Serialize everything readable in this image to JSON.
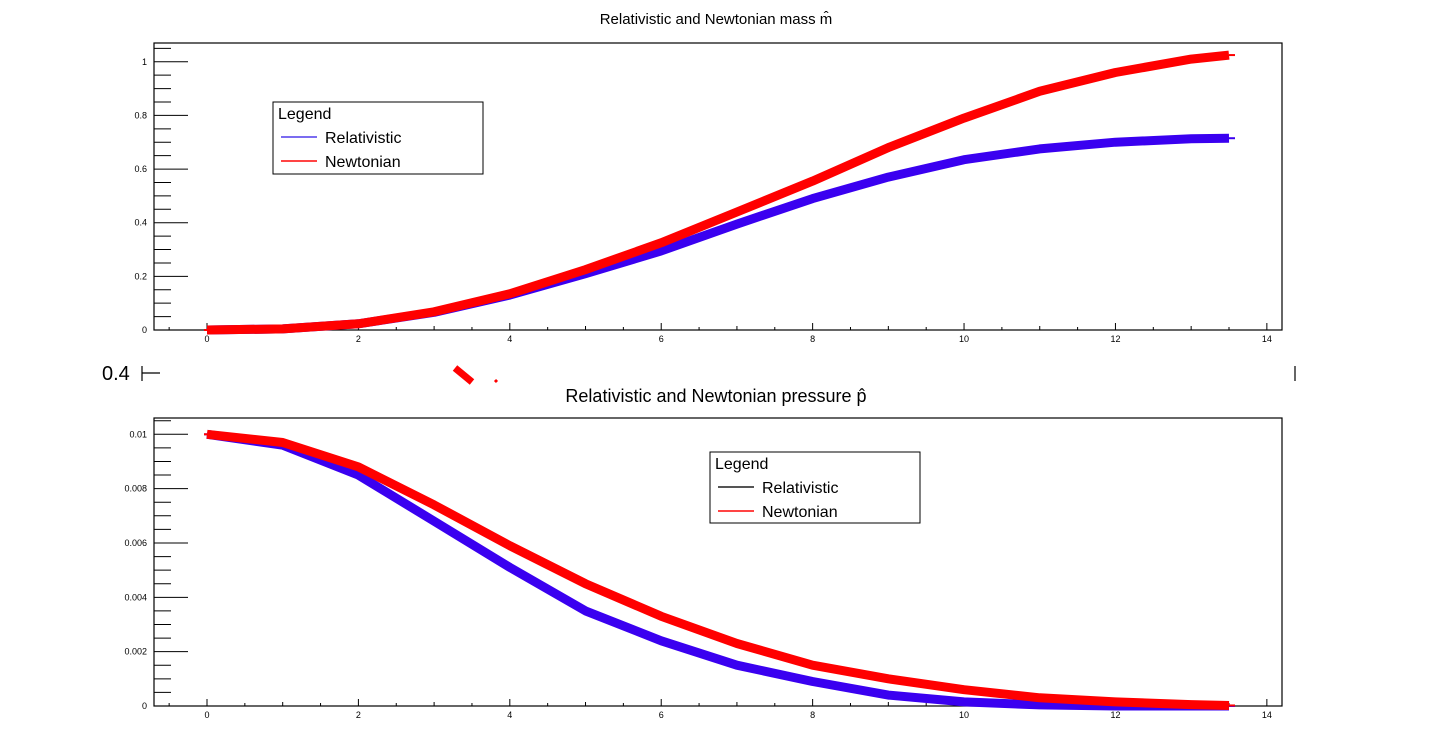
{
  "colors": {
    "relativistic": "#3a00f0",
    "newtonian": "#ff0000",
    "axis": "#000000",
    "legend_rel_top": "#7b6cf0",
    "legend_rel_bottom": "#555555",
    "legend_newt": "#ff4444"
  },
  "artifact": {
    "label": "0.4"
  },
  "chart_data": [
    {
      "type": "line",
      "title": "Relativistic and Newtonian mass m̂",
      "xlabel": "",
      "ylabel": "",
      "xlim": [
        -0.7,
        14.2
      ],
      "ylim": [
        0,
        1.07
      ],
      "xticks": [
        0,
        2,
        4,
        6,
        8,
        10,
        12,
        14
      ],
      "xtick_labels": [
        "0",
        "2",
        "4",
        "6",
        "8",
        "10",
        "12",
        "14"
      ],
      "yticks": [
        0,
        0.2,
        0.4,
        0.6,
        0.8,
        1
      ],
      "ytick_labels": [
        "0",
        "0.2",
        "0.4",
        "0.6",
        "0.8",
        "1"
      ],
      "grid": false,
      "legend": {
        "title": "Legend",
        "placement": "top-left",
        "entries": [
          "Relativistic",
          "Newtonian"
        ]
      },
      "series": [
        {
          "name": "Relativistic",
          "x": [
            0,
            1,
            2,
            3,
            4,
            5,
            6,
            7,
            8,
            9,
            10,
            11,
            12,
            13,
            13.5
          ],
          "y": [
            0,
            0.004,
            0.023,
            0.066,
            0.13,
            0.21,
            0.295,
            0.395,
            0.49,
            0.57,
            0.635,
            0.675,
            0.7,
            0.713,
            0.715
          ]
        },
        {
          "name": "Newtonian",
          "x": [
            0,
            1,
            2,
            3,
            4,
            5,
            6,
            7,
            8,
            9,
            10,
            11,
            12,
            13,
            13.5
          ],
          "y": [
            0,
            0.004,
            0.023,
            0.068,
            0.135,
            0.225,
            0.325,
            0.44,
            0.555,
            0.68,
            0.79,
            0.89,
            0.96,
            1.01,
            1.025
          ]
        }
      ]
    },
    {
      "type": "line",
      "title": "Relativistic and Newtonian pressure p̂",
      "xlabel": "",
      "ylabel": "",
      "xlim": [
        -0.7,
        14.2
      ],
      "ylim": [
        0,
        0.0106
      ],
      "xticks": [
        0,
        2,
        4,
        6,
        8,
        10,
        12,
        14
      ],
      "xtick_labels": [
        "0",
        "2",
        "4",
        "6",
        "8",
        "10",
        "12",
        "14"
      ],
      "yticks": [
        0,
        0.002,
        0.004,
        0.006,
        0.008,
        0.01
      ],
      "ytick_labels": [
        "0",
        "0.002",
        "0.004",
        "0.006",
        "0.008",
        "0.01"
      ],
      "grid": false,
      "legend": {
        "title": "Legend",
        "placement": "top-center",
        "entries": [
          "Relativistic",
          "Newtonian"
        ]
      },
      "series": [
        {
          "name": "Relativistic",
          "x": [
            0,
            1,
            2,
            3,
            4,
            5,
            6,
            7,
            8,
            9,
            10,
            11,
            12,
            13,
            13.5
          ],
          "y": [
            0.01,
            0.0096,
            0.0085,
            0.0068,
            0.0051,
            0.0035,
            0.0024,
            0.0015,
            0.0009,
            0.0004,
            0.00015,
            4e-05,
            0.0,
            0.0,
            0.0
          ]
        },
        {
          "name": "Newtonian",
          "x": [
            0,
            1,
            2,
            3,
            4,
            5,
            6,
            7,
            8,
            9,
            10,
            11,
            12,
            13,
            13.5
          ],
          "y": [
            0.01,
            0.0097,
            0.0088,
            0.0074,
            0.0059,
            0.0045,
            0.0033,
            0.0023,
            0.0015,
            0.001,
            0.0006,
            0.0003,
            0.00015,
            5e-05,
            2e-05
          ]
        }
      ]
    }
  ]
}
